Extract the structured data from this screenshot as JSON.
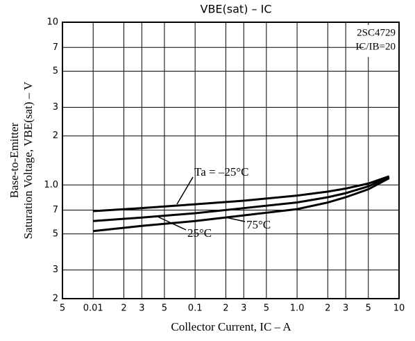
{
  "chart_data": {
    "type": "line",
    "title": "VBE(sat) – IC",
    "x_label": "Collector Current, IC – A",
    "y_label": [
      "Base-to-Emitter",
      "Saturation Voltage, VBE(sat) – V"
    ],
    "annotations": [
      "2SC4729",
      "IC/IB=20"
    ],
    "xscale": "log",
    "yscale": "log",
    "grid": true,
    "xlim": [
      0.005,
      10
    ],
    "ylim": [
      0.2,
      10
    ],
    "xticks": [
      {
        "value": 0.005,
        "label": "5"
      },
      0.01,
      {
        "value": 0.02,
        "label": "2"
      },
      {
        "value": 0.03,
        "label": "3"
      },
      {
        "value": 0.05,
        "label": "5"
      },
      0.1,
      {
        "value": 0.2,
        "label": "2"
      },
      {
        "value": 0.3,
        "label": "3"
      },
      {
        "value": 0.5,
        "label": "5"
      },
      {
        "value": 1,
        "label": "1.0"
      },
      2,
      3,
      5,
      10
    ],
    "yticks": [
      {
        "value": 0.2,
        "label": "2"
      },
      {
        "value": 0.3,
        "label": "3"
      },
      {
        "value": 0.5,
        "label": "5"
      },
      {
        "value": 0.7,
        "label": "7"
      },
      {
        "value": 1,
        "label": "1.0"
      },
      2,
      3,
      5,
      7,
      10
    ],
    "x": [
      0.01,
      0.03,
      0.1,
      0.3,
      1,
      2,
      3,
      5,
      8
    ],
    "series": [
      {
        "name": "Ta = –25°C",
        "color": "#000000",
        "values": [
          0.69,
          0.72,
          0.76,
          0.8,
          0.86,
          0.91,
          0.95,
          1.02,
          1.13
        ]
      },
      {
        "name": "25°C",
        "color": "#000000",
        "values": [
          0.6,
          0.63,
          0.67,
          0.72,
          0.78,
          0.84,
          0.89,
          0.98,
          1.12
        ]
      },
      {
        "name": "75°C",
        "color": "#000000",
        "values": [
          0.52,
          0.56,
          0.6,
          0.65,
          0.71,
          0.78,
          0.84,
          0.94,
          1.1
        ]
      }
    ]
  }
}
